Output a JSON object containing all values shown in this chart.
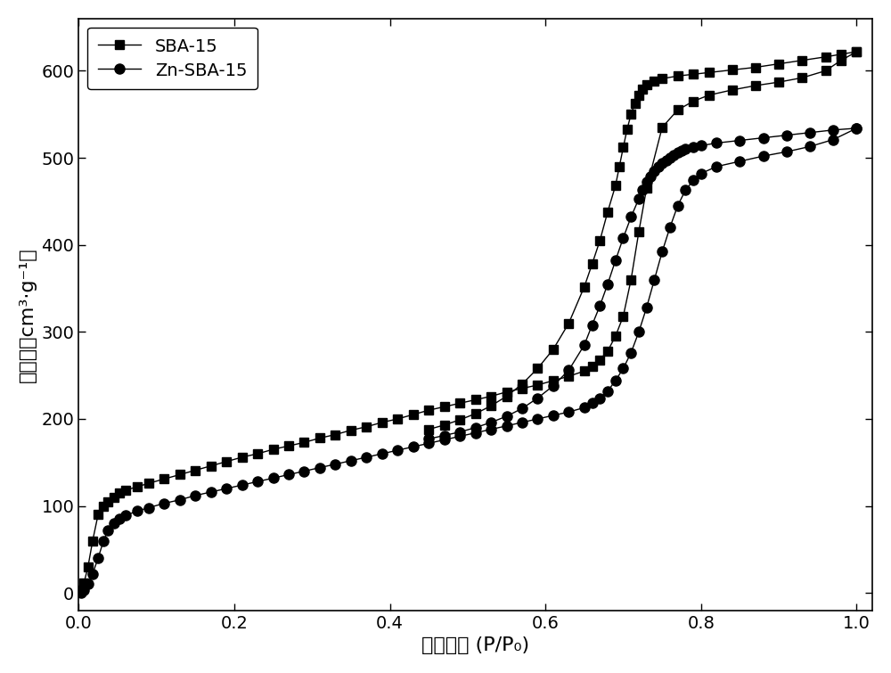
{
  "title": "",
  "xlabel": "相对压力 (P/P₀)",
  "ylabel": "吸附量（cm³·g⁻¹）",
  "xlim": [
    0.0,
    1.02
  ],
  "ylim": [
    -20,
    660
  ],
  "legend": [
    "SBA-15",
    "Zn-SBA-15"
  ],
  "color": "#000000",
  "linewidth": 1.0,
  "markersize_square": 7,
  "markersize_circle": 8,
  "sba15_ads_x": [
    0.003,
    0.007,
    0.012,
    0.018,
    0.025,
    0.032,
    0.038,
    0.045,
    0.052,
    0.06,
    0.075,
    0.09,
    0.11,
    0.13,
    0.15,
    0.17,
    0.19,
    0.21,
    0.23,
    0.25,
    0.27,
    0.29,
    0.31,
    0.33,
    0.35,
    0.37,
    0.39,
    0.41,
    0.43,
    0.45,
    0.47,
    0.49,
    0.51,
    0.53,
    0.55,
    0.57,
    0.59,
    0.61,
    0.63,
    0.65,
    0.66,
    0.67,
    0.68,
    0.69,
    0.7,
    0.71,
    0.72,
    0.73,
    0.75,
    0.77,
    0.79,
    0.81,
    0.84,
    0.87,
    0.9,
    0.93,
    0.96,
    0.98,
    1.0
  ],
  "sba15_ads_y": [
    3,
    12,
    30,
    60,
    90,
    100,
    105,
    110,
    115,
    118,
    122,
    126,
    131,
    136,
    141,
    146,
    151,
    156,
    160,
    165,
    169,
    173,
    178,
    182,
    187,
    191,
    196,
    200,
    205,
    210,
    214,
    218,
    222,
    226,
    231,
    235,
    239,
    244,
    249,
    255,
    260,
    268,
    278,
    295,
    318,
    360,
    415,
    465,
    535,
    555,
    565,
    572,
    578,
    583,
    587,
    592,
    600,
    612,
    622
  ],
  "sba15_des_x": [
    1.0,
    0.98,
    0.96,
    0.93,
    0.9,
    0.87,
    0.84,
    0.81,
    0.79,
    0.77,
    0.75,
    0.74,
    0.73,
    0.725,
    0.72,
    0.715,
    0.71,
    0.705,
    0.7,
    0.695,
    0.69,
    0.68,
    0.67,
    0.66,
    0.65,
    0.63,
    0.61,
    0.59,
    0.57,
    0.55,
    0.53,
    0.51,
    0.49,
    0.47,
    0.45
  ],
  "sba15_des_y": [
    622,
    619,
    616,
    612,
    608,
    604,
    601,
    598,
    596,
    594,
    591,
    588,
    584,
    579,
    572,
    563,
    550,
    533,
    512,
    490,
    468,
    438,
    405,
    378,
    352,
    310,
    280,
    258,
    240,
    226,
    215,
    206,
    199,
    193,
    188
  ],
  "znsba15_ads_x": [
    0.003,
    0.007,
    0.012,
    0.018,
    0.025,
    0.032,
    0.038,
    0.045,
    0.052,
    0.06,
    0.075,
    0.09,
    0.11,
    0.13,
    0.15,
    0.17,
    0.19,
    0.21,
    0.23,
    0.25,
    0.27,
    0.29,
    0.31,
    0.33,
    0.35,
    0.37,
    0.39,
    0.41,
    0.43,
    0.45,
    0.47,
    0.49,
    0.51,
    0.53,
    0.55,
    0.57,
    0.59,
    0.61,
    0.63,
    0.65,
    0.66,
    0.67,
    0.68,
    0.69,
    0.7,
    0.71,
    0.72,
    0.73,
    0.74,
    0.75,
    0.76,
    0.77,
    0.78,
    0.79,
    0.8,
    0.82,
    0.85,
    0.88,
    0.91,
    0.94,
    0.97,
    1.0
  ],
  "znsba15_ads_y": [
    0,
    3,
    10,
    22,
    40,
    60,
    72,
    80,
    85,
    89,
    94,
    98,
    103,
    107,
    112,
    116,
    120,
    124,
    128,
    132,
    136,
    140,
    144,
    148,
    152,
    156,
    160,
    164,
    168,
    172,
    176,
    180,
    184,
    188,
    192,
    196,
    200,
    204,
    208,
    213,
    218,
    224,
    232,
    244,
    258,
    276,
    300,
    328,
    360,
    392,
    420,
    445,
    463,
    474,
    482,
    490,
    496,
    502,
    507,
    513,
    521,
    534
  ],
  "znsba15_des_x": [
    1.0,
    0.97,
    0.94,
    0.91,
    0.88,
    0.85,
    0.82,
    0.8,
    0.79,
    0.78,
    0.775,
    0.77,
    0.765,
    0.76,
    0.755,
    0.75,
    0.745,
    0.74,
    0.735,
    0.73,
    0.725,
    0.72,
    0.71,
    0.7,
    0.69,
    0.68,
    0.67,
    0.66,
    0.65,
    0.63,
    0.61,
    0.59,
    0.57,
    0.55,
    0.53,
    0.51,
    0.49,
    0.47,
    0.45
  ],
  "znsba15_des_y": [
    534,
    532,
    529,
    526,
    523,
    520,
    517,
    514,
    512,
    510,
    508,
    506,
    503,
    500,
    497,
    494,
    490,
    485,
    479,
    472,
    463,
    453,
    432,
    408,
    382,
    355,
    330,
    308,
    285,
    256,
    238,
    224,
    212,
    203,
    196,
    190,
    185,
    181,
    177
  ]
}
